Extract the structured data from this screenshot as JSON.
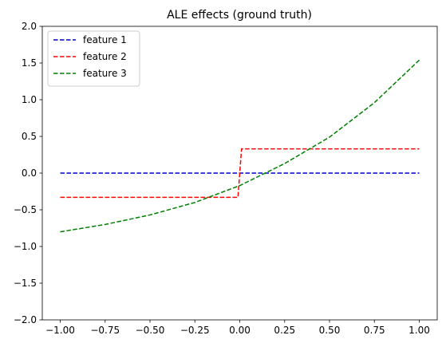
{
  "chart_data": {
    "type": "line",
    "title": "ALE effects (ground truth)",
    "xlabel": "",
    "ylabel": "",
    "xlim": [
      -1.0,
      1.0
    ],
    "ylim": [
      -2.0,
      2.0
    ],
    "x_ticks": [
      -1.0,
      -0.75,
      -0.5,
      -0.25,
      0.0,
      0.25,
      0.5,
      0.75,
      1.0
    ],
    "x_tick_labels": [
      "−1.00",
      "−0.75",
      "−0.50",
      "−0.25",
      "0.00",
      "0.25",
      "0.50",
      "0.75",
      "1.00"
    ],
    "y_ticks": [
      -2.0,
      -1.5,
      -1.0,
      -0.5,
      0.0,
      0.5,
      1.0,
      1.5,
      2.0
    ],
    "y_tick_labels": [
      "−2.0",
      "−1.5",
      "−1.0",
      "−0.5",
      "0.0",
      "0.5",
      "1.0",
      "1.5",
      "2.0"
    ],
    "grid": false,
    "legend_position": "top-left",
    "line_style": "dashed",
    "series": [
      {
        "name": "feature 1",
        "color": "#0000cc",
        "x": [
          -1.0,
          1.0
        ],
        "y": [
          0.0,
          0.0
        ]
      },
      {
        "name": "feature 2",
        "color": "#ff0000",
        "x": [
          -1.0,
          -0.01,
          0.01,
          1.0
        ],
        "y": [
          -0.33,
          -0.33,
          0.33,
          0.33
        ]
      },
      {
        "name": "feature 3",
        "color": "#008000",
        "x": [
          -1.0,
          -0.75,
          -0.5,
          -0.25,
          0.0,
          0.25,
          0.5,
          0.75,
          1.0
        ],
        "y": [
          -0.8,
          -0.7,
          -0.57,
          -0.4,
          -0.17,
          0.13,
          0.49,
          0.96,
          1.54
        ]
      }
    ]
  }
}
